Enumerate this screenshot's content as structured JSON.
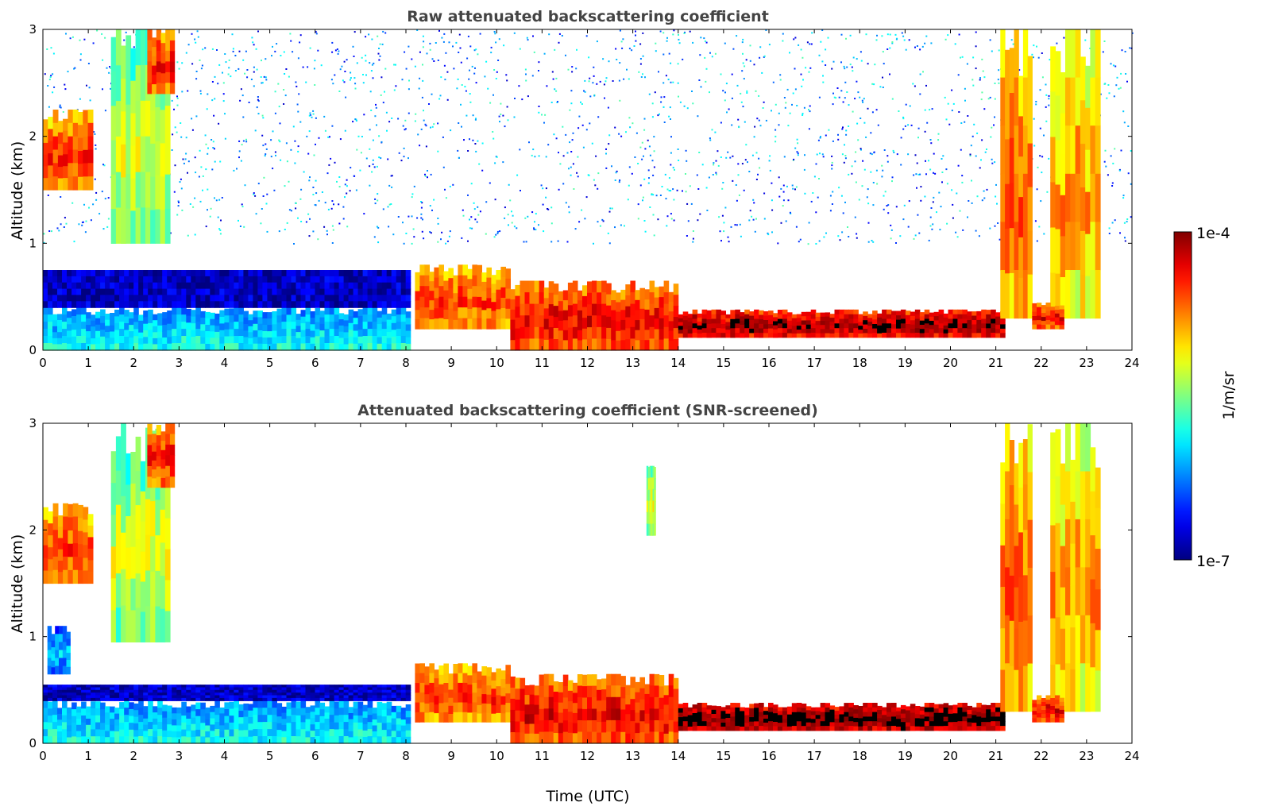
{
  "figure": {
    "xlabel": "Time (UTC)",
    "colorbar": {
      "label": "1/m/sr",
      "max_label": "1e-4",
      "min_label": "1e-7"
    }
  },
  "chart_data": [
    {
      "type": "heatmap",
      "title": "Raw attenuated backscattering coefficient",
      "xlabel": "",
      "ylabel": "Altitude (km)",
      "xlim": [
        0,
        24
      ],
      "ylim": [
        0,
        3
      ],
      "xticks": [
        0,
        1,
        2,
        3,
        4,
        5,
        6,
        7,
        8,
        9,
        10,
        11,
        12,
        13,
        14,
        15,
        16,
        17,
        18,
        19,
        20,
        21,
        22,
        23,
        24
      ],
      "yticks": [
        0,
        1,
        2,
        3
      ],
      "colorscale": {
        "name": "jet",
        "log10_min": -7,
        "log10_max": -4
      },
      "features": [
        {
          "kind": "noise",
          "x0": 0,
          "x1": 24,
          "y0": 1.0,
          "y1": 3.0,
          "log10": -6.2,
          "density": 0.35
        },
        {
          "kind": "boundary_layer",
          "x0": 0,
          "x1": 8.1,
          "y0": 0.0,
          "y1": 0.4,
          "log10": -6.0
        },
        {
          "kind": "haze",
          "x0": 0,
          "x1": 8.1,
          "y0": 0.4,
          "y1": 0.75,
          "log10": -6.8
        },
        {
          "kind": "cloud",
          "x0": 0,
          "x1": 1.1,
          "y0": 1.5,
          "y1": 2.25,
          "log10": -4.5
        },
        {
          "kind": "cloud",
          "x0": 1.5,
          "x1": 2.8,
          "y0": 1.0,
          "y1": 3.0,
          "log10": -5.2
        },
        {
          "kind": "cloud",
          "x0": 2.3,
          "x1": 2.9,
          "y0": 2.4,
          "y1": 3.0,
          "log10": -4.4
        },
        {
          "kind": "aerosol_layer",
          "x0": 8.2,
          "x1": 10.3,
          "y0": 0.2,
          "y1": 0.8,
          "log10": -4.5
        },
        {
          "kind": "aerosol_layer",
          "x0": 10.3,
          "x1": 14.0,
          "y0": 0.0,
          "y1": 0.65,
          "log10": -4.3
        },
        {
          "kind": "aerosol_layer",
          "x0": 14.0,
          "x1": 21.2,
          "y0": 0.12,
          "y1": 0.38,
          "log10": -4.05
        },
        {
          "kind": "cloud",
          "x0": 21.1,
          "x1": 21.8,
          "y0": 0.3,
          "y1": 3.0,
          "log10": -4.6
        },
        {
          "kind": "cloud",
          "x0": 22.2,
          "x1": 23.3,
          "y0": 0.3,
          "y1": 3.0,
          "log10": -4.8
        },
        {
          "kind": "aerosol_layer",
          "x0": 21.8,
          "x1": 22.5,
          "y0": 0.2,
          "y1": 0.45,
          "log10": -4.3
        }
      ]
    },
    {
      "type": "heatmap",
      "title": "Attenuated backscattering coefficient (SNR-screened)",
      "xlabel": "Time (UTC)",
      "ylabel": "Altitude (km)",
      "xlim": [
        0,
        24
      ],
      "ylim": [
        0,
        3
      ],
      "xticks": [
        0,
        1,
        2,
        3,
        4,
        5,
        6,
        7,
        8,
        9,
        10,
        11,
        12,
        13,
        14,
        15,
        16,
        17,
        18,
        19,
        20,
        21,
        22,
        23,
        24
      ],
      "yticks": [
        0,
        1,
        2,
        3
      ],
      "colorscale": {
        "name": "jet",
        "log10_min": -7,
        "log10_max": -4
      },
      "features": [
        {
          "kind": "boundary_layer",
          "x0": 0,
          "x1": 8.1,
          "y0": 0.0,
          "y1": 0.4,
          "log10": -6.0
        },
        {
          "kind": "haze",
          "x0": 0,
          "x1": 8.1,
          "y0": 0.4,
          "y1": 0.55,
          "log10": -6.8
        },
        {
          "kind": "cloud",
          "x0": 0,
          "x1": 1.1,
          "y0": 1.5,
          "y1": 2.25,
          "log10": -4.5
        },
        {
          "kind": "cloud",
          "x0": 0.1,
          "x1": 0.6,
          "y0": 0.65,
          "y1": 1.1,
          "log10": -6.0
        },
        {
          "kind": "cloud",
          "x0": 1.5,
          "x1": 2.8,
          "y0": 0.95,
          "y1": 3.0,
          "log10": -5.2
        },
        {
          "kind": "cloud",
          "x0": 2.3,
          "x1": 2.9,
          "y0": 2.4,
          "y1": 3.0,
          "log10": -4.4
        },
        {
          "kind": "cloud",
          "x0": 13.3,
          "x1": 13.5,
          "y0": 1.95,
          "y1": 2.6,
          "log10": -5.2
        },
        {
          "kind": "aerosol_layer",
          "x0": 8.2,
          "x1": 10.3,
          "y0": 0.2,
          "y1": 0.75,
          "log10": -4.5
        },
        {
          "kind": "aerosol_layer",
          "x0": 10.3,
          "x1": 14.0,
          "y0": 0.0,
          "y1": 0.65,
          "log10": -4.3
        },
        {
          "kind": "aerosol_layer",
          "x0": 14.0,
          "x1": 21.2,
          "y0": 0.12,
          "y1": 0.38,
          "log10": -3.9
        },
        {
          "kind": "cloud",
          "x0": 21.1,
          "x1": 21.8,
          "y0": 0.3,
          "y1": 3.0,
          "log10": -4.6
        },
        {
          "kind": "cloud",
          "x0": 22.2,
          "x1": 23.3,
          "y0": 0.3,
          "y1": 3.0,
          "log10": -4.8
        },
        {
          "kind": "aerosol_layer",
          "x0": 21.8,
          "x1": 22.5,
          "y0": 0.2,
          "y1": 0.45,
          "log10": -4.3
        }
      ]
    }
  ]
}
